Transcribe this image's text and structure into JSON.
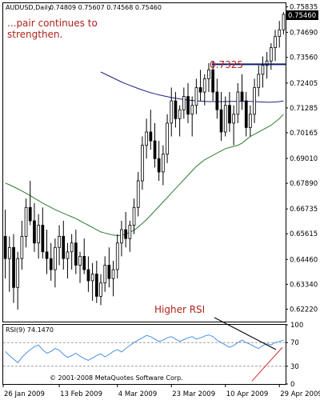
{
  "chart_data": [
    {
      "type": "candlestick",
      "panel": "price",
      "header": {
        "symbol_label": "AUDUSD,Daily",
        "ohlc_label": "0.74809 0.75607 0.74568 0.75460"
      },
      "annotation": "...pair continues to\nstrengthen.",
      "level_label": "0.7325",
      "level_value": 0.7325,
      "last_price_label": "0.75460",
      "last_price": 0.7546,
      "ylim": [
        0.6166,
        0.76
      ],
      "y_ticks": [
        "0.75835",
        "0.74690",
        "0.73560",
        "0.72405",
        "0.71285",
        "0.70165",
        "0.69010",
        "0.67890",
        "0.66735",
        "0.65615",
        "0.64460",
        "0.63340",
        "0.62220"
      ],
      "y_tick_values": [
        0.75835,
        0.7469,
        0.7356,
        0.72405,
        0.71285,
        0.70165,
        0.6901,
        0.6789,
        0.66735,
        0.65615,
        0.6446,
        0.6334,
        0.6222
      ],
      "x_ticks": [
        "26 Jan 2009",
        "13 Feb 2009",
        "4 Mar 2009",
        "23 Mar 2009",
        "10 Apr 2009",
        "29 Apr 2009"
      ],
      "x_tick_bar_index": [
        0,
        13,
        27,
        40,
        53,
        66
      ],
      "candles": [
        {
          "o": 0.655,
          "h": 0.667,
          "l": 0.636,
          "c": 0.645
        },
        {
          "o": 0.645,
          "h": 0.655,
          "l": 0.63,
          "c": 0.65
        },
        {
          "o": 0.65,
          "h": 0.656,
          "l": 0.625,
          "c": 0.632
        },
        {
          "o": 0.632,
          "h": 0.648,
          "l": 0.622,
          "c": 0.645
        },
        {
          "o": 0.645,
          "h": 0.662,
          "l": 0.64,
          "c": 0.655
        },
        {
          "o": 0.655,
          "h": 0.672,
          "l": 0.65,
          "c": 0.668
        },
        {
          "o": 0.668,
          "h": 0.68,
          "l": 0.66,
          "c": 0.662
        },
        {
          "o": 0.662,
          "h": 0.67,
          "l": 0.648,
          "c": 0.652
        },
        {
          "o": 0.652,
          "h": 0.665,
          "l": 0.645,
          "c": 0.66
        },
        {
          "o": 0.66,
          "h": 0.668,
          "l": 0.645,
          "c": 0.648
        },
        {
          "o": 0.648,
          "h": 0.658,
          "l": 0.638,
          "c": 0.645
        },
        {
          "o": 0.645,
          "h": 0.652,
          "l": 0.635,
          "c": 0.64
        },
        {
          "o": 0.64,
          "h": 0.654,
          "l": 0.632,
          "c": 0.65
        },
        {
          "o": 0.65,
          "h": 0.66,
          "l": 0.642,
          "c": 0.655
        },
        {
          "o": 0.655,
          "h": 0.662,
          "l": 0.64,
          "c": 0.645
        },
        {
          "o": 0.645,
          "h": 0.652,
          "l": 0.636,
          "c": 0.648
        },
        {
          "o": 0.648,
          "h": 0.656,
          "l": 0.64,
          "c": 0.652
        },
        {
          "o": 0.652,
          "h": 0.658,
          "l": 0.638,
          "c": 0.642
        },
        {
          "o": 0.642,
          "h": 0.648,
          "l": 0.634,
          "c": 0.646
        },
        {
          "o": 0.646,
          "h": 0.654,
          "l": 0.638,
          "c": 0.64
        },
        {
          "o": 0.64,
          "h": 0.646,
          "l": 0.63,
          "c": 0.635
        },
        {
          "o": 0.635,
          "h": 0.643,
          "l": 0.626,
          "c": 0.638
        },
        {
          "o": 0.638,
          "h": 0.644,
          "l": 0.625,
          "c": 0.628
        },
        {
          "o": 0.628,
          "h": 0.638,
          "l": 0.624,
          "c": 0.634
        },
        {
          "o": 0.634,
          "h": 0.646,
          "l": 0.63,
          "c": 0.642
        },
        {
          "o": 0.642,
          "h": 0.65,
          "l": 0.632,
          "c": 0.636
        },
        {
          "o": 0.636,
          "h": 0.644,
          "l": 0.628,
          "c": 0.64
        },
        {
          "o": 0.64,
          "h": 0.656,
          "l": 0.636,
          "c": 0.652
        },
        {
          "o": 0.652,
          "h": 0.662,
          "l": 0.646,
          "c": 0.658
        },
        {
          "o": 0.658,
          "h": 0.666,
          "l": 0.65,
          "c": 0.654
        },
        {
          "o": 0.654,
          "h": 0.662,
          "l": 0.648,
          "c": 0.66
        },
        {
          "o": 0.66,
          "h": 0.672,
          "l": 0.656,
          "c": 0.668
        },
        {
          "o": 0.668,
          "h": 0.684,
          "l": 0.664,
          "c": 0.68
        },
        {
          "o": 0.68,
          "h": 0.7,
          "l": 0.676,
          "c": 0.696
        },
        {
          "o": 0.696,
          "h": 0.708,
          "l": 0.69,
          "c": 0.702
        },
        {
          "o": 0.702,
          "h": 0.712,
          "l": 0.694,
          "c": 0.698
        },
        {
          "o": 0.698,
          "h": 0.706,
          "l": 0.686,
          "c": 0.69
        },
        {
          "o": 0.69,
          "h": 0.698,
          "l": 0.68,
          "c": 0.684
        },
        {
          "o": 0.684,
          "h": 0.696,
          "l": 0.678,
          "c": 0.692
        },
        {
          "o": 0.692,
          "h": 0.71,
          "l": 0.688,
          "c": 0.706
        },
        {
          "o": 0.706,
          "h": 0.722,
          "l": 0.7,
          "c": 0.716
        },
        {
          "o": 0.716,
          "h": 0.72,
          "l": 0.704,
          "c": 0.708
        },
        {
          "o": 0.708,
          "h": 0.714,
          "l": 0.7,
          "c": 0.712
        },
        {
          "o": 0.712,
          "h": 0.722,
          "l": 0.708,
          "c": 0.718
        },
        {
          "o": 0.718,
          "h": 0.724,
          "l": 0.706,
          "c": 0.71
        },
        {
          "o": 0.71,
          "h": 0.718,
          "l": 0.7,
          "c": 0.714
        },
        {
          "o": 0.714,
          "h": 0.726,
          "l": 0.71,
          "c": 0.722
        },
        {
          "o": 0.722,
          "h": 0.73,
          "l": 0.716,
          "c": 0.72
        },
        {
          "o": 0.72,
          "h": 0.728,
          "l": 0.714,
          "c": 0.726
        },
        {
          "o": 0.726,
          "h": 0.733,
          "l": 0.72,
          "c": 0.73
        },
        {
          "o": 0.73,
          "h": 0.734,
          "l": 0.716,
          "c": 0.72
        },
        {
          "o": 0.72,
          "h": 0.726,
          "l": 0.708,
          "c": 0.712
        },
        {
          "o": 0.712,
          "h": 0.72,
          "l": 0.698,
          "c": 0.702
        },
        {
          "o": 0.702,
          "h": 0.718,
          "l": 0.7,
          "c": 0.714
        },
        {
          "o": 0.714,
          "h": 0.72,
          "l": 0.702,
          "c": 0.706
        },
        {
          "o": 0.706,
          "h": 0.714,
          "l": 0.696,
          "c": 0.71
        },
        {
          "o": 0.71,
          "h": 0.724,
          "l": 0.706,
          "c": 0.72
        },
        {
          "o": 0.72,
          "h": 0.728,
          "l": 0.712,
          "c": 0.716
        },
        {
          "o": 0.716,
          "h": 0.72,
          "l": 0.7,
          "c": 0.704
        },
        {
          "o": 0.704,
          "h": 0.714,
          "l": 0.7,
          "c": 0.71
        },
        {
          "o": 0.71,
          "h": 0.726,
          "l": 0.706,
          "c": 0.722
        },
        {
          "o": 0.722,
          "h": 0.732,
          "l": 0.718,
          "c": 0.728
        },
        {
          "o": 0.728,
          "h": 0.736,
          "l": 0.722,
          "c": 0.732
        },
        {
          "o": 0.732,
          "h": 0.738,
          "l": 0.726,
          "c": 0.734
        },
        {
          "o": 0.734,
          "h": 0.742,
          "l": 0.73,
          "c": 0.74
        },
        {
          "o": 0.74,
          "h": 0.748,
          "l": 0.734,
          "c": 0.745
        },
        {
          "o": 0.745,
          "h": 0.752,
          "l": 0.74,
          "c": 0.748
        },
        {
          "o": 0.748,
          "h": 0.756,
          "l": 0.746,
          "c": 0.755
        }
      ],
      "ma_series": [
        {
          "color": "#1a237e",
          "start_index": 23,
          "values": [
            0.729,
            0.7281,
            0.7272,
            0.7263,
            0.7254,
            0.7245,
            0.7237,
            0.723,
            0.7223,
            0.7216,
            0.7209,
            0.7203,
            0.7197,
            0.7192,
            0.7187,
            0.7183,
            0.7179,
            0.7175,
            0.7172,
            0.7169,
            0.7166,
            0.7164,
            0.7162,
            0.716,
            0.7159,
            0.7158,
            0.7157,
            0.7157,
            0.7157,
            0.7157,
            0.7157,
            0.7158,
            0.7158,
            0.7158,
            0.7158,
            0.7158,
            0.7158,
            0.7157,
            0.7156,
            0.7155,
            0.7154,
            0.7154,
            0.7155,
            0.7157,
            0.716
          ]
        },
        {
          "color": "#2e7d32",
          "start_index": 0,
          "values": [
            0.679,
            0.6782,
            0.6773,
            0.6764,
            0.6754,
            0.6744,
            0.6733,
            0.6722,
            0.6711,
            0.67,
            0.669,
            0.668,
            0.667,
            0.6662,
            0.6654,
            0.6646,
            0.6638,
            0.663,
            0.662,
            0.661,
            0.66,
            0.659,
            0.658,
            0.657,
            0.6565,
            0.656,
            0.6556,
            0.6553,
            0.6555,
            0.656,
            0.6568,
            0.6578,
            0.6592,
            0.6608,
            0.6625,
            0.6645,
            0.6665,
            0.6685,
            0.6705,
            0.6725,
            0.6745,
            0.6765,
            0.6785,
            0.6805,
            0.6825,
            0.6845,
            0.6865,
            0.688,
            0.6895,
            0.6905,
            0.6915,
            0.6925,
            0.6935,
            0.6945,
            0.695,
            0.6955,
            0.696,
            0.697,
            0.6985,
            0.7,
            0.701,
            0.702,
            0.703,
            0.704,
            0.705,
            0.7065,
            0.708,
            0.71
          ]
        }
      ]
    },
    {
      "type": "line",
      "panel": "rsi",
      "label": "RSI(9) 74.1470",
      "annotation": "Higher RSI",
      "copyright": "© 2001-2008 MetaQuotes Software Corp.",
      "ylim": [
        0,
        100
      ],
      "y_ticks": [
        "100",
        "70",
        "30",
        "0"
      ],
      "y_tick_values": [
        100,
        70,
        30,
        0
      ],
      "levels": [
        70,
        30
      ],
      "line_color": "#4a90e2",
      "values": [
        55,
        48,
        42,
        36,
        45,
        52,
        58,
        63,
        66,
        58,
        52,
        55,
        60,
        57,
        50,
        45,
        48,
        52,
        47,
        43,
        40,
        44,
        48,
        51,
        46,
        50,
        55,
        58,
        54,
        60,
        65,
        70,
        74,
        78,
        82,
        80,
        76,
        72,
        74,
        78,
        80,
        76,
        72,
        75,
        78,
        80,
        76,
        78,
        81,
        83,
        80,
        74,
        70,
        66,
        62,
        65,
        70,
        74,
        70,
        67,
        63,
        60,
        65,
        68,
        66,
        70,
        72,
        74
      ]
    }
  ]
}
